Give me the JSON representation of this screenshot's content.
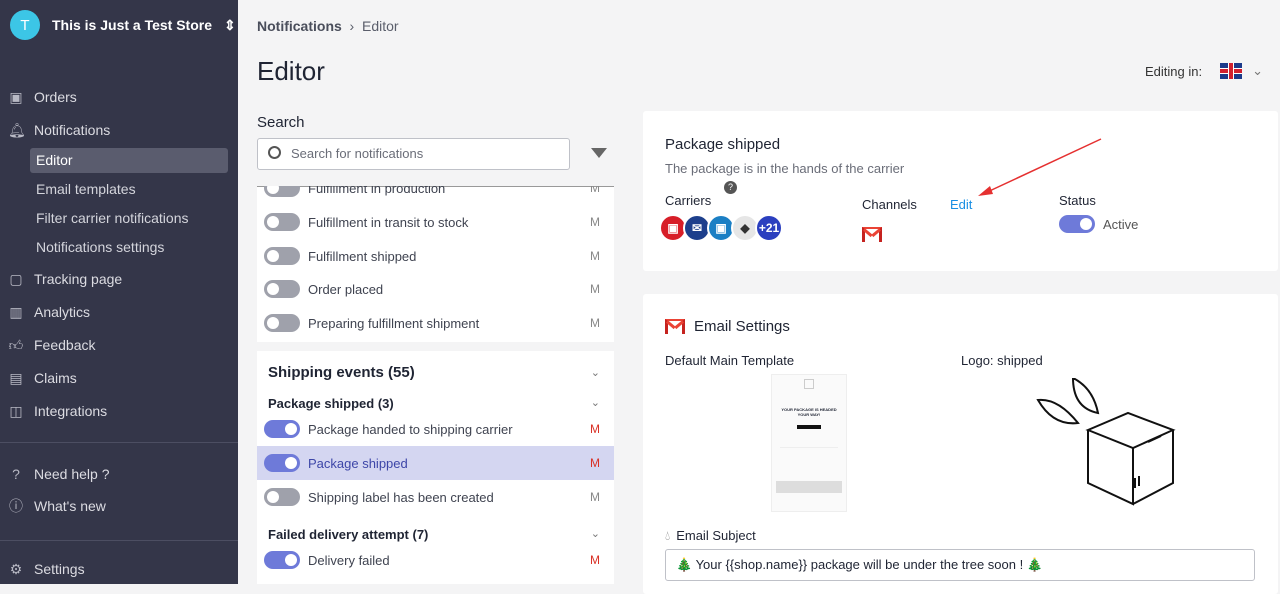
{
  "store": {
    "initial": "T",
    "name": "This is Just a Test Store"
  },
  "sidebar": {
    "items": [
      {
        "label": "Orders",
        "icon": "box-icon"
      },
      {
        "label": "Notifications",
        "icon": "bell-icon"
      },
      {
        "label": "Tracking page",
        "icon": "tracking-page-icon"
      },
      {
        "label": "Analytics",
        "icon": "chart-icon"
      },
      {
        "label": "Feedback",
        "icon": "thumbs-up-icon"
      },
      {
        "label": "Claims",
        "icon": "archive-icon"
      },
      {
        "label": "Integrations",
        "icon": "integrations-icon"
      }
    ],
    "sub_items": [
      "Editor",
      "Email templates",
      "Filter carrier notifications",
      "Notifications settings"
    ],
    "help": "Need help ?",
    "whats_new": "What's new",
    "settings": "Settings"
  },
  "breadcrumb": {
    "parent": "Notifications",
    "current": "Editor"
  },
  "page_title": "Editor",
  "editing_in": "Editing in:",
  "search": {
    "label": "Search",
    "placeholder": "Search for notifications"
  },
  "list": {
    "top_rows": [
      {
        "label": "Fulfillment in production",
        "on": false
      },
      {
        "label": "Fulfillment in transit to stock",
        "on": false
      },
      {
        "label": "Fulfillment shipped",
        "on": false
      },
      {
        "label": "Order placed",
        "on": false
      },
      {
        "label": "Preparing fulfillment shipment",
        "on": false
      }
    ],
    "shipping_events": "Shipping events (55)",
    "package_shipped_group": "Package shipped (3)",
    "group_rows": [
      {
        "label": "Package handed to shipping carrier",
        "on": true
      },
      {
        "label": "Package shipped",
        "on": true,
        "selected": true
      },
      {
        "label": "Shipping label has been created",
        "on": false
      }
    ],
    "failed_group": "Failed delivery attempt (7)",
    "failed_rows": [
      {
        "label": "Delivery failed",
        "on": true
      }
    ]
  },
  "detail": {
    "title": "Package shipped",
    "description": "The package is in the hands of the carrier",
    "carriers_label": "Carriers",
    "carriers_more": "+21",
    "channels_label": "Channels",
    "edit": "Edit",
    "status_label": "Status",
    "status": "Active"
  },
  "email": {
    "title": "Email Settings",
    "template_label": "Default Main Template",
    "logo_label": "Logo: shipped",
    "thumb_heading": "YOUR PACKAGE IS HEADED YOUR WAY!",
    "subject_label": "Email Subject",
    "subject": "🎄 Your {{shop.name}} package will be under the tree soon ! 🎄"
  }
}
